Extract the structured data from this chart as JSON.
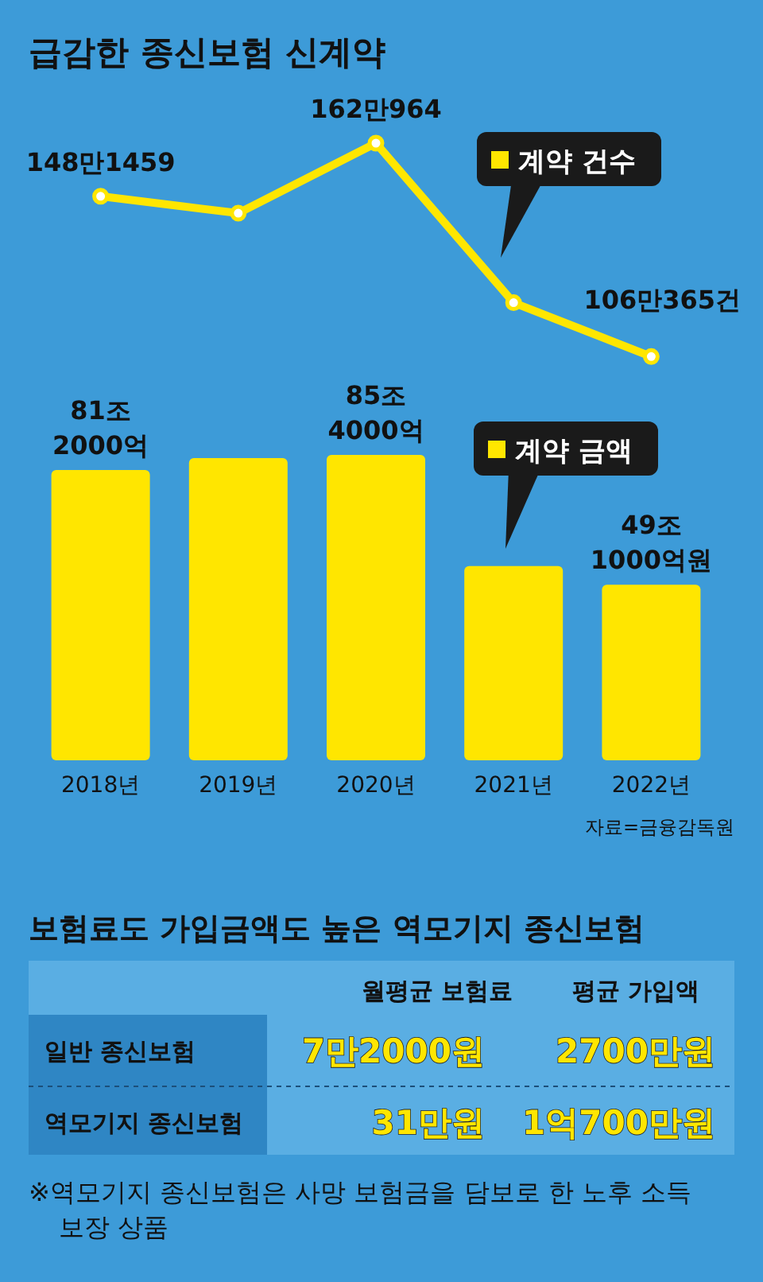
{
  "chart_data": [
    {
      "type": "line",
      "title": "급감한 종신보험 신계약",
      "categories": [
        null,
        null,
        null,
        null,
        null
      ],
      "tick_labels": false,
      "marker": "circle",
      "series": [
        {
          "name": "계약 건수",
          "color": "#ffe600",
          "values": [
            148.1459,
            143.7,
            162.0964,
            120.2,
            106.0365
          ],
          "value_labels": [
            "148만1459",
            null,
            "162만964",
            null,
            "106만365건"
          ]
        }
      ]
    },
    {
      "type": "bar",
      "categories": [
        "2018년",
        "2019년",
        "2020년",
        "2021년",
        "2022년"
      ],
      "tick_labels": "x",
      "series": [
        {
          "name": "계약 금액",
          "color": "#ffe600",
          "values": [
            81.2,
            84.5,
            85.4,
            54.3,
            49.1
          ],
          "value_labels": [
            "81조 2000억",
            null,
            "85조 4000억",
            null,
            "49조 1000억원"
          ]
        }
      ],
      "annotations": [
        "자료=금융감독원"
      ]
    },
    {
      "type": "other",
      "title": "보험료도 가입금액도 높은 역모기지 종신보험",
      "categories": [
        "월평균 보험료",
        "평균 가입액"
      ],
      "y_categories": [
        "일반 종신보험",
        "역모기지 종신보험"
      ],
      "cell_labels": [
        [
          "7만2000원",
          "2700만원"
        ],
        [
          "31만원",
          "1억700만원"
        ]
      ],
      "annotations": [
        "※역모기지 종신보험은 사망 보험금을 담보로 한 노후 소득 보장 상품"
      ]
    }
  ]
}
